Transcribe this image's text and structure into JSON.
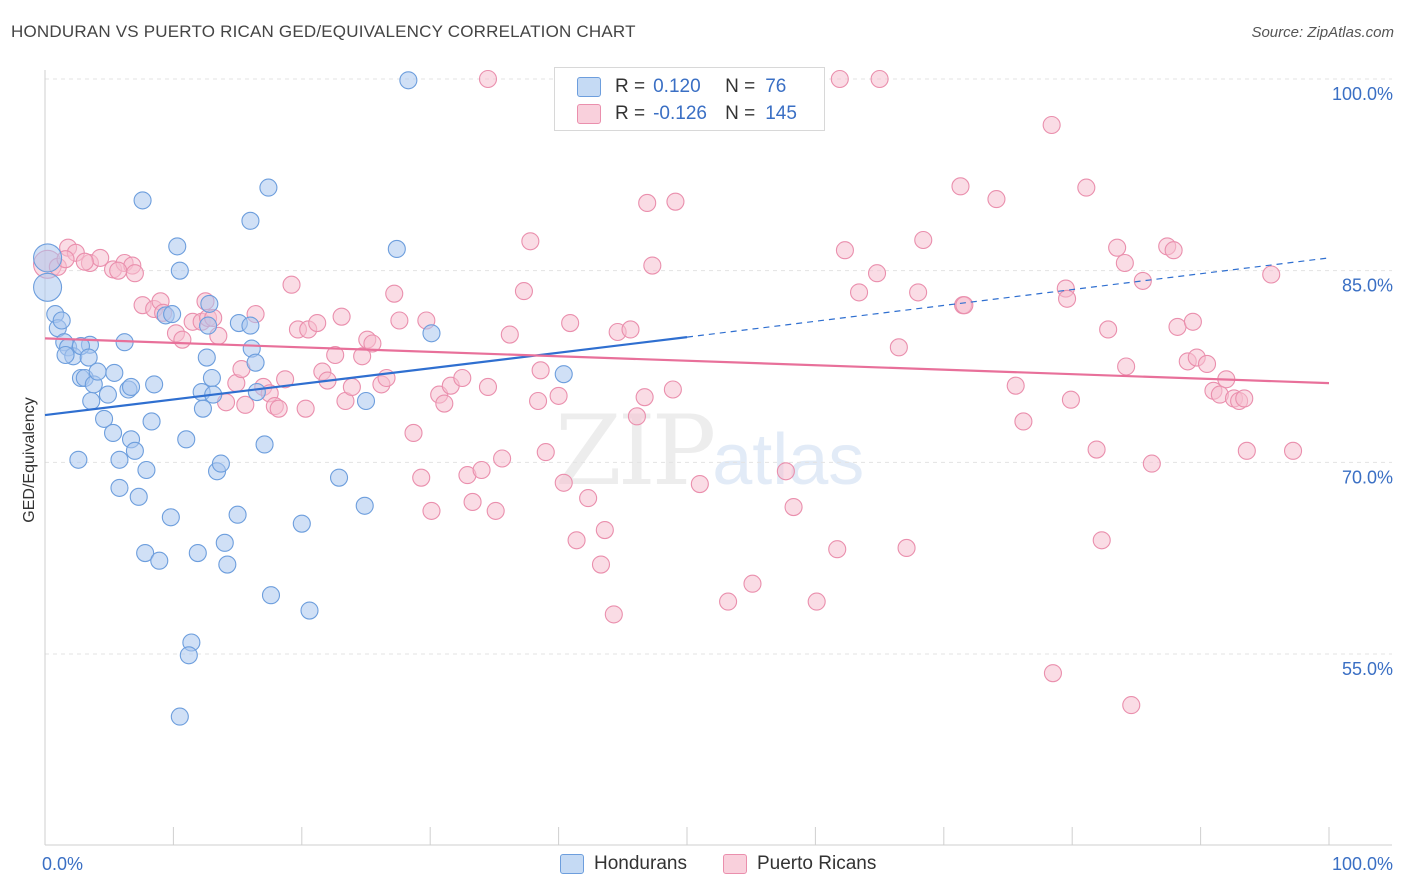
{
  "title": "HONDURAN VS PUERTO RICAN GED/EQUIVALENCY CORRELATION CHART",
  "source": "Source: ZipAtlas.com",
  "watermark": {
    "zip": "ZIP",
    "atlas": "atlas"
  },
  "legend": {
    "rows": [
      {
        "r_label": "R =",
        "r_value": "0.120",
        "n_label": "N =",
        "n_value": "76"
      },
      {
        "r_label": "R =",
        "r_value": "-0.126",
        "n_label": "N =",
        "n_value": "145"
      }
    ]
  },
  "bottom_legend": [
    "Hondurans",
    "Puerto Ricans"
  ],
  "chart_data": {
    "type": "scatter",
    "xlabel": "",
    "ylabel": "GED/Equivalency",
    "xlim": [
      0,
      100
    ],
    "ylim": [
      40,
      101.5
    ],
    "x_tick_labels": [
      "0.0%",
      "100.0%"
    ],
    "y_ticks": [
      55,
      70,
      85,
      100
    ],
    "y_tick_labels": [
      "55.0%",
      "70.0%",
      "85.0%",
      "100.0%"
    ],
    "grid": true,
    "colors": {
      "hondurans_fill": "#a9c7ee",
      "hondurans_stroke": "#6d9edd",
      "hondurans_line": "#2f6fd0",
      "puerto_fill": "#f6bfd0",
      "puerto_stroke": "#ea8fad",
      "puerto_line": "#e8709a",
      "tick_label": "#3a6fc4",
      "grid": "#e3e3e3"
    },
    "series": [
      {
        "name": "Hondurans",
        "r": 0.12,
        "n": 76,
        "trend": {
          "x0": 0,
          "y0": 73.7,
          "x1": 50,
          "y1": 79.8,
          "dash_to_x": 100,
          "dash_to_y": 86.0
        },
        "points": [
          [
            0.2,
            86.0
          ],
          [
            0.2,
            83.7
          ],
          [
            0.8,
            81.6
          ],
          [
            1.0,
            80.5
          ],
          [
            1.3,
            81.1
          ],
          [
            1.5,
            79.4
          ],
          [
            1.8,
            79.0
          ],
          [
            2.2,
            78.3
          ],
          [
            1.6,
            78.4
          ],
          [
            3.5,
            79.2
          ],
          [
            2.8,
            79.1
          ],
          [
            3.4,
            78.2
          ],
          [
            2.8,
            76.6
          ],
          [
            3.1,
            76.6
          ],
          [
            3.8,
            76.1
          ],
          [
            4.1,
            77.1
          ],
          [
            5.4,
            77.0
          ],
          [
            6.2,
            79.4
          ],
          [
            4.9,
            75.3
          ],
          [
            3.6,
            74.8
          ],
          [
            4.6,
            73.4
          ],
          [
            5.3,
            72.3
          ],
          [
            2.6,
            70.2
          ],
          [
            5.8,
            70.2
          ],
          [
            6.7,
            71.8
          ],
          [
            7.0,
            70.9
          ],
          [
            7.9,
            69.4
          ],
          [
            5.8,
            68.0
          ],
          [
            7.3,
            67.3
          ],
          [
            8.3,
            73.2
          ],
          [
            8.5,
            76.1
          ],
          [
            6.5,
            75.7
          ],
          [
            6.7,
            75.9
          ],
          [
            9.4,
            81.5
          ],
          [
            9.9,
            81.6
          ],
          [
            9.8,
            65.7
          ],
          [
            7.8,
            62.9
          ],
          [
            8.9,
            62.3
          ],
          [
            11.0,
            71.8
          ],
          [
            12.7,
            80.7
          ],
          [
            12.8,
            82.4
          ],
          [
            15.1,
            80.9
          ],
          [
            16.0,
            80.7
          ],
          [
            12.6,
            78.2
          ],
          [
            16.1,
            78.9
          ],
          [
            16.4,
            77.8
          ],
          [
            13.0,
            76.6
          ],
          [
            12.2,
            75.5
          ],
          [
            12.3,
            74.2
          ],
          [
            13.1,
            75.3
          ],
          [
            16.5,
            75.5
          ],
          [
            17.1,
            71.4
          ],
          [
            13.4,
            69.3
          ],
          [
            13.7,
            69.9
          ],
          [
            15.0,
            65.9
          ],
          [
            14.0,
            63.7
          ],
          [
            14.2,
            62.0
          ],
          [
            11.9,
            62.9
          ],
          [
            11.4,
            55.9
          ],
          [
            11.2,
            54.9
          ],
          [
            10.5,
            50.1
          ],
          [
            17.6,
            59.6
          ],
          [
            20.0,
            65.2
          ],
          [
            20.6,
            58.4
          ],
          [
            10.3,
            86.9
          ],
          [
            10.5,
            85.0
          ],
          [
            7.6,
            90.5
          ],
          [
            16.0,
            88.9
          ],
          [
            17.4,
            91.5
          ],
          [
            27.4,
            86.7
          ],
          [
            28.3,
            99.9
          ],
          [
            30.1,
            80.1
          ],
          [
            22.9,
            68.8
          ],
          [
            25.0,
            74.8
          ],
          [
            24.9,
            66.6
          ],
          [
            40.4,
            76.9
          ]
        ]
      },
      {
        "name": "Puerto Ricans",
        "r": -0.126,
        "n": 145,
        "trend": {
          "x0": 0,
          "y0": 79.7,
          "x1": 100,
          "y1": 76.2
        },
        "points": [
          [
            0.2,
            85.5
          ],
          [
            1.0,
            85.3
          ],
          [
            1.8,
            86.8
          ],
          [
            2.4,
            86.4
          ],
          [
            3.5,
            85.6
          ],
          [
            4.3,
            86.0
          ],
          [
            5.3,
            85.1
          ],
          [
            6.2,
            85.6
          ],
          [
            6.8,
            85.4
          ],
          [
            7.0,
            84.8
          ],
          [
            1.6,
            85.9
          ],
          [
            3.1,
            85.7
          ],
          [
            5.7,
            85.0
          ],
          [
            7.6,
            82.3
          ],
          [
            8.5,
            82.0
          ],
          [
            9.0,
            82.6
          ],
          [
            9.2,
            81.7
          ],
          [
            10.2,
            80.1
          ],
          [
            10.7,
            79.6
          ],
          [
            11.5,
            81.0
          ],
          [
            12.5,
            82.6
          ],
          [
            12.2,
            81.0
          ],
          [
            12.7,
            81.3
          ],
          [
            13.1,
            81.3
          ],
          [
            13.5,
            79.9
          ],
          [
            14.1,
            74.7
          ],
          [
            14.9,
            76.2
          ],
          [
            15.3,
            77.3
          ],
          [
            15.6,
            74.5
          ],
          [
            16.4,
            81.6
          ],
          [
            17.0,
            75.9
          ],
          [
            17.5,
            75.4
          ],
          [
            17.9,
            74.4
          ],
          [
            18.2,
            74.2
          ],
          [
            18.7,
            76.5
          ],
          [
            19.2,
            83.9
          ],
          [
            19.7,
            80.4
          ],
          [
            20.3,
            74.2
          ],
          [
            20.5,
            80.4
          ],
          [
            21.2,
            80.9
          ],
          [
            21.6,
            77.1
          ],
          [
            22.0,
            76.4
          ],
          [
            22.6,
            78.4
          ],
          [
            23.1,
            81.4
          ],
          [
            23.4,
            74.8
          ],
          [
            23.9,
            75.9
          ],
          [
            24.7,
            78.3
          ],
          [
            25.1,
            79.6
          ],
          [
            25.5,
            79.3
          ],
          [
            26.2,
            76.1
          ],
          [
            26.6,
            76.6
          ],
          [
            27.2,
            83.2
          ],
          [
            27.6,
            81.1
          ],
          [
            28.7,
            72.3
          ],
          [
            29.3,
            68.8
          ],
          [
            29.7,
            81.1
          ],
          [
            30.1,
            66.2
          ],
          [
            30.7,
            75.3
          ],
          [
            31.1,
            74.6
          ],
          [
            31.6,
            76.0
          ],
          [
            32.5,
            76.6
          ],
          [
            32.9,
            69.0
          ],
          [
            33.3,
            66.9
          ],
          [
            34.0,
            69.4
          ],
          [
            34.5,
            75.9
          ],
          [
            35.1,
            66.2
          ],
          [
            35.6,
            70.3
          ],
          [
            36.2,
            80.0
          ],
          [
            37.3,
            83.4
          ],
          [
            37.8,
            87.3
          ],
          [
            38.4,
            74.8
          ],
          [
            38.6,
            77.2
          ],
          [
            39.0,
            70.8
          ],
          [
            40.0,
            75.2
          ],
          [
            40.4,
            68.4
          ],
          [
            40.9,
            80.9
          ],
          [
            41.4,
            63.9
          ],
          [
            42.3,
            67.2
          ],
          [
            43.3,
            62.0
          ],
          [
            43.6,
            64.7
          ],
          [
            44.3,
            58.1
          ],
          [
            44.6,
            80.2
          ],
          [
            45.6,
            80.4
          ],
          [
            46.1,
            73.6
          ],
          [
            46.7,
            75.1
          ],
          [
            46.9,
            90.3
          ],
          [
            47.3,
            85.4
          ],
          [
            48.9,
            75.7
          ],
          [
            49.1,
            90.4
          ],
          [
            51.0,
            68.3
          ],
          [
            53.2,
            59.1
          ],
          [
            55.1,
            60.5
          ],
          [
            57.7,
            69.3
          ],
          [
            58.3,
            66.5
          ],
          [
            60.1,
            59.1
          ],
          [
            61.7,
            63.2
          ],
          [
            62.3,
            86.6
          ],
          [
            63.4,
            83.3
          ],
          [
            64.8,
            84.8
          ],
          [
            65.0,
            100.0
          ],
          [
            66.5,
            79.0
          ],
          [
            67.1,
            63.3
          ],
          [
            68.0,
            83.3
          ],
          [
            68.4,
            87.4
          ],
          [
            71.5,
            82.3
          ],
          [
            71.3,
            91.6
          ],
          [
            74.1,
            90.6
          ],
          [
            75.6,
            76.0
          ],
          [
            76.2,
            73.2
          ],
          [
            78.4,
            96.4
          ],
          [
            79.5,
            83.6
          ],
          [
            79.6,
            82.8
          ],
          [
            79.9,
            74.9
          ],
          [
            81.1,
            91.5
          ],
          [
            81.9,
            71.0
          ],
          [
            82.3,
            63.9
          ],
          [
            82.8,
            80.4
          ],
          [
            83.5,
            86.8
          ],
          [
            84.1,
            85.6
          ],
          [
            84.2,
            77.5
          ],
          [
            85.5,
            84.2
          ],
          [
            86.2,
            69.9
          ],
          [
            87.4,
            86.9
          ],
          [
            87.9,
            86.6
          ],
          [
            88.2,
            80.6
          ],
          [
            89.4,
            81.0
          ],
          [
            89.0,
            77.9
          ],
          [
            89.7,
            78.2
          ],
          [
            90.5,
            77.7
          ],
          [
            91.0,
            75.6
          ],
          [
            91.5,
            75.3
          ],
          [
            92.0,
            76.5
          ],
          [
            92.6,
            75.0
          ],
          [
            93.0,
            74.8
          ],
          [
            93.6,
            70.9
          ],
          [
            84.6,
            51.0
          ],
          [
            78.5,
            53.5
          ],
          [
            61.9,
            100.0
          ],
          [
            57.2,
            100.0
          ],
          [
            34.5,
            100.0
          ],
          [
            59.7,
            100.0
          ],
          [
            95.5,
            84.7
          ],
          [
            97.2,
            70.9
          ],
          [
            71.6,
            82.3
          ],
          [
            93.4,
            75.0
          ]
        ]
      }
    ]
  }
}
